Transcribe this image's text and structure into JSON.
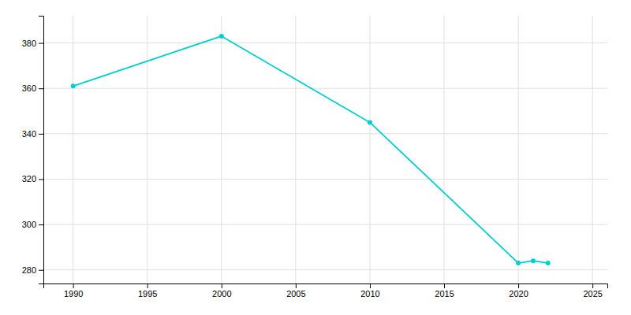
{
  "chart_data": {
    "type": "line",
    "x": [
      1990,
      2000,
      2010,
      2020,
      2021,
      2022
    ],
    "values": [
      361,
      383,
      345,
      283,
      284,
      283
    ],
    "color": "#00CED1",
    "marker": "circle",
    "xlim": [
      1988,
      2026
    ],
    "ylim": [
      274,
      392
    ],
    "xticks": [
      1990,
      1995,
      2000,
      2005,
      2010,
      2015,
      2020,
      2025
    ],
    "yticks": [
      280,
      300,
      320,
      340,
      360,
      380
    ],
    "grid": true
  }
}
